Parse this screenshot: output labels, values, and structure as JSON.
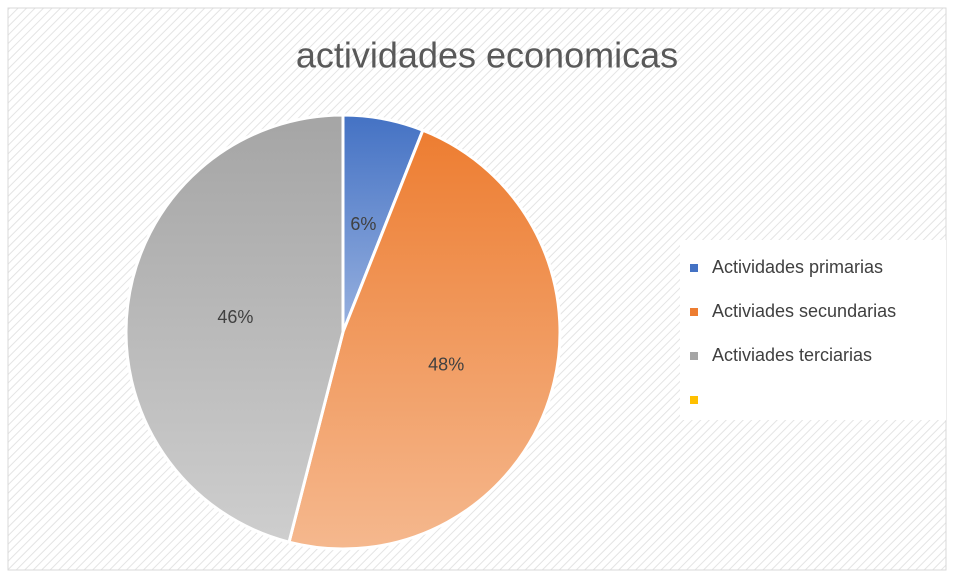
{
  "chart_data": {
    "type": "pie",
    "title": "actividades economicas",
    "categories": [
      "Actividades primarias",
      "Activiades secundarias",
      "Activiades terciarias",
      null
    ],
    "values": [
      6,
      48,
      46,
      null
    ],
    "value_labels": [
      "6%",
      "48%",
      "46%",
      null
    ],
    "colors": [
      "#4472c4",
      "#ed7d31",
      "#a5a5a5",
      "#ffc000"
    ],
    "legend": "right"
  }
}
